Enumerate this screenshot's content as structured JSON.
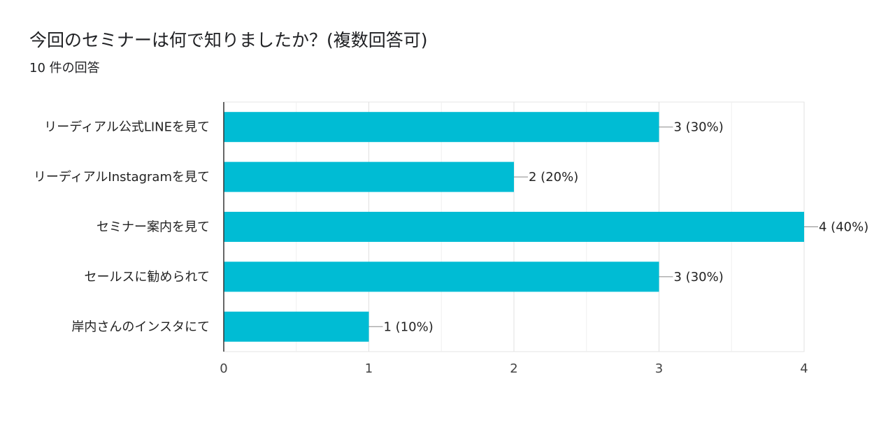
{
  "header": {
    "title": "今回のセミナーは何で知りましたか？(複数回答可)",
    "subtitle": "10 件の回答"
  },
  "chart_data": {
    "type": "bar",
    "orientation": "horizontal",
    "categories": [
      "リーディアル公式LINEを見て",
      "リーディアルInstagramを見て",
      "セミナー案内を見て",
      "セールスに勧められて",
      "岸内さんのインスタにて"
    ],
    "values": [
      3,
      2,
      4,
      3,
      1
    ],
    "value_labels": [
      "3 (30%)",
      "2 (20%)",
      "4 (40%)",
      "3 (30%)",
      "1 (10%)"
    ],
    "xlim": [
      0,
      4
    ],
    "xticks": [
      "0",
      "1",
      "2",
      "3",
      "4"
    ],
    "grid": true,
    "bar_color": "#00bcd4"
  }
}
